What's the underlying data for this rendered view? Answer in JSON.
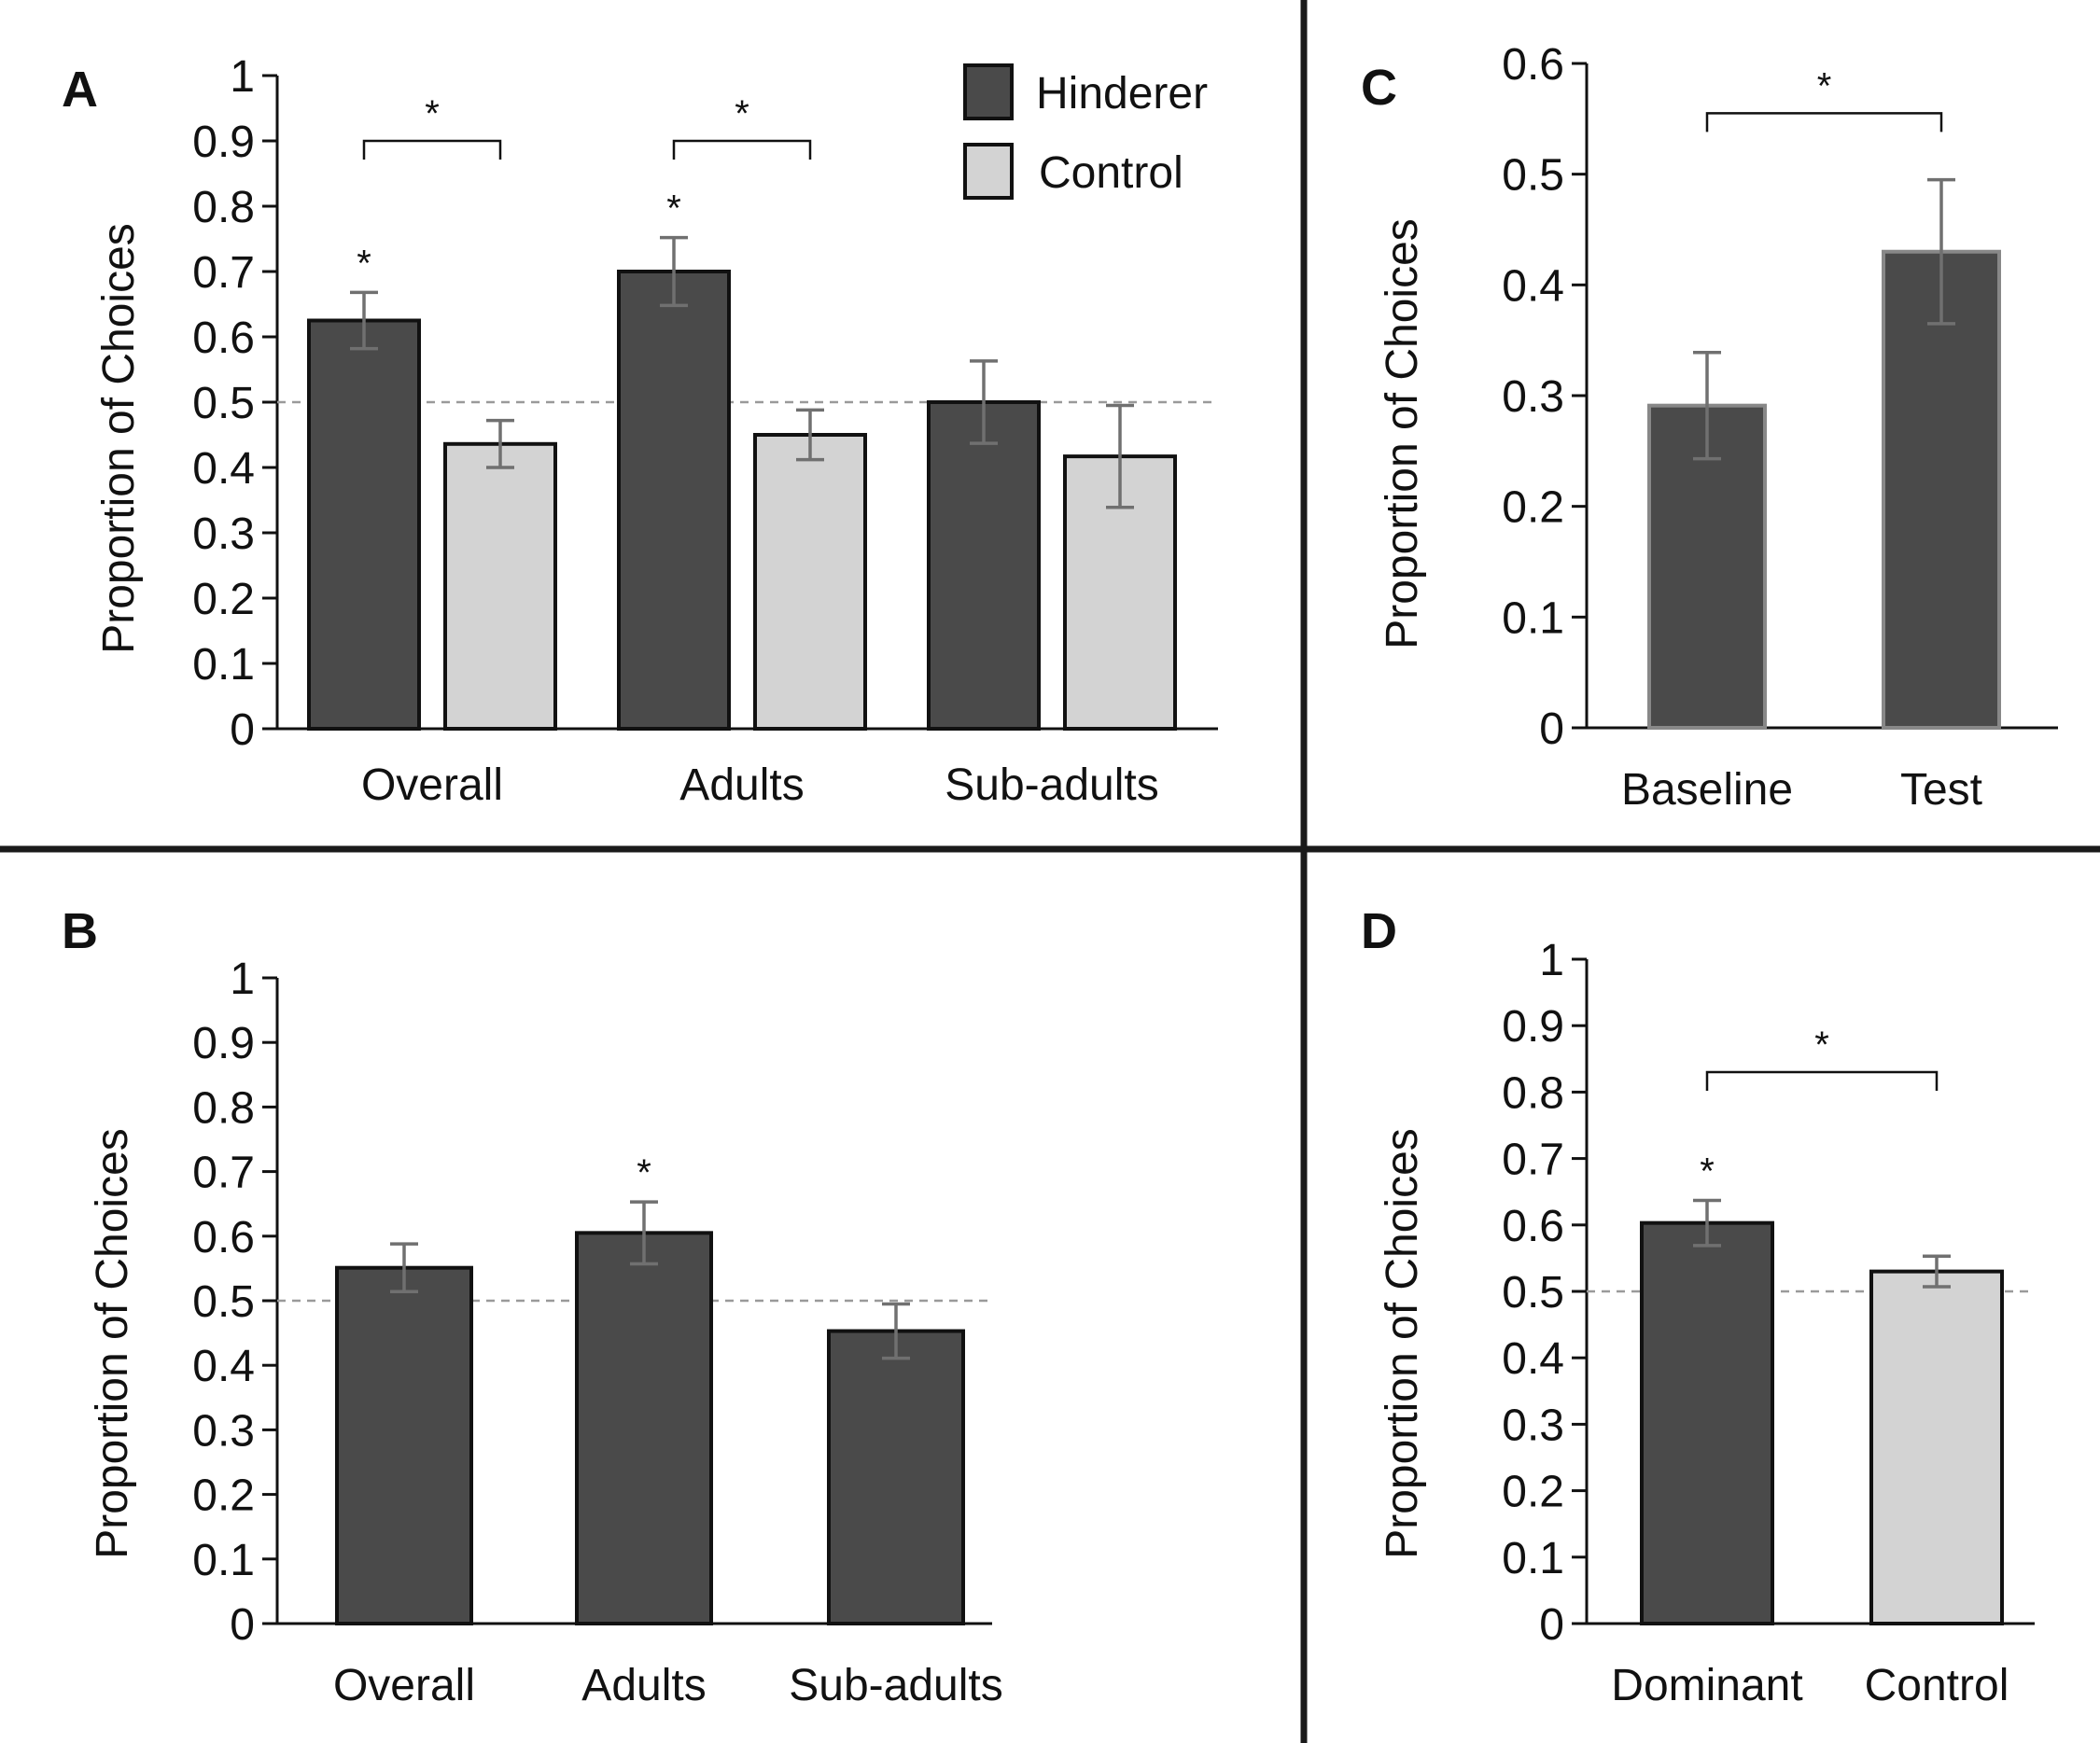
{
  "colors": {
    "hinderer": "#4a4a4a",
    "control": "#d3d3d3",
    "errorbar": "#707070",
    "reference": "#9a9a9a",
    "divider": "#1a1a1a"
  },
  "legend": [
    {
      "label": "Hinderer",
      "color": "#4a4a4a"
    },
    {
      "label": "Control",
      "color": "#d3d3d3"
    }
  ],
  "chart_data": [
    {
      "panel": "A",
      "type": "bar",
      "ylabel": "Proportion of Choices",
      "ylim": [
        0,
        1
      ],
      "ticks": [
        "0",
        "0.1",
        "0.2",
        "0.3",
        "0.4",
        "0.5",
        "0.6",
        "0.7",
        "0.8",
        "0.9",
        "1"
      ],
      "categories": [
        "Overall",
        "Adults",
        "Sub-adults"
      ],
      "reference_line": 0.5,
      "series": [
        {
          "name": "Hinderer",
          "color": "#4a4a4a",
          "values": [
            0.625,
            0.7,
            0.5
          ],
          "errors": [
            0.043,
            0.052,
            0.063
          ]
        },
        {
          "name": "Control",
          "color": "#d3d3d3",
          "values": [
            0.436,
            0.45,
            0.417
          ],
          "errors": [
            0.036,
            0.038,
            0.078
          ]
        }
      ],
      "bar_stars": [
        {
          "category": 0,
          "series": 0,
          "text": "*"
        },
        {
          "category": 1,
          "series": 0,
          "text": "*"
        }
      ],
      "brackets": [
        {
          "category": 0,
          "y": 0.9,
          "text": "*"
        },
        {
          "category": 1,
          "y": 0.9,
          "text": "*"
        }
      ]
    },
    {
      "panel": "B",
      "type": "bar",
      "ylabel": "Proportion of Choices",
      "ylim": [
        0,
        1
      ],
      "ticks": [
        "0",
        "0.1",
        "0.2",
        "0.3",
        "0.4",
        "0.5",
        "0.6",
        "0.7",
        "0.8",
        "0.9",
        "1"
      ],
      "categories": [
        "Overall",
        "Adults",
        "Sub-adults"
      ],
      "reference_line": 0.5,
      "series": [
        {
          "name": "",
          "color": "#4a4a4a",
          "values": [
            0.551,
            0.605,
            0.453
          ],
          "errors": [
            0.037,
            0.048,
            0.042
          ]
        }
      ],
      "bar_stars": [
        {
          "category": 1,
          "series": 0,
          "text": "*"
        }
      ],
      "brackets": []
    },
    {
      "panel": "C",
      "type": "bar",
      "ylabel": "Proportion of Choices",
      "ylim": [
        0,
        0.6
      ],
      "ticks": [
        "0",
        "0.1",
        "0.2",
        "0.3",
        "0.4",
        "0.5",
        "0.6"
      ],
      "categories": [
        "Baseline",
        "Test"
      ],
      "reference_line": null,
      "series": [
        {
          "name": "",
          "color": "#4a4a4a",
          "values": [
            0.291,
            0.43
          ],
          "errors": [
            0.048,
            0.065
          ]
        }
      ],
      "bar_stars": [],
      "brackets": [
        {
          "from": 0,
          "to": 1,
          "y": 0.555,
          "text": "*"
        }
      ]
    },
    {
      "panel": "D",
      "type": "bar",
      "ylabel": "Proportion of Choices",
      "ylim": [
        0,
        1
      ],
      "ticks": [
        "0",
        "0.1",
        "0.2",
        "0.3",
        "0.4",
        "0.5",
        "0.6",
        "0.7",
        "0.8",
        "0.9",
        "1"
      ],
      "categories": [
        "Dominant",
        "Control"
      ],
      "reference_line": 0.5,
      "series": [
        {
          "name": "",
          "colors": [
            "#4a4a4a",
            "#d3d3d3"
          ],
          "values": [
            0.603,
            0.53
          ],
          "errors": [
            0.034,
            0.023
          ]
        }
      ],
      "bar_stars": [
        {
          "category": 0,
          "series": 0,
          "text": "*"
        }
      ],
      "brackets": [
        {
          "from": 0,
          "to": 1,
          "y": 0.83,
          "text": "*"
        }
      ]
    }
  ]
}
